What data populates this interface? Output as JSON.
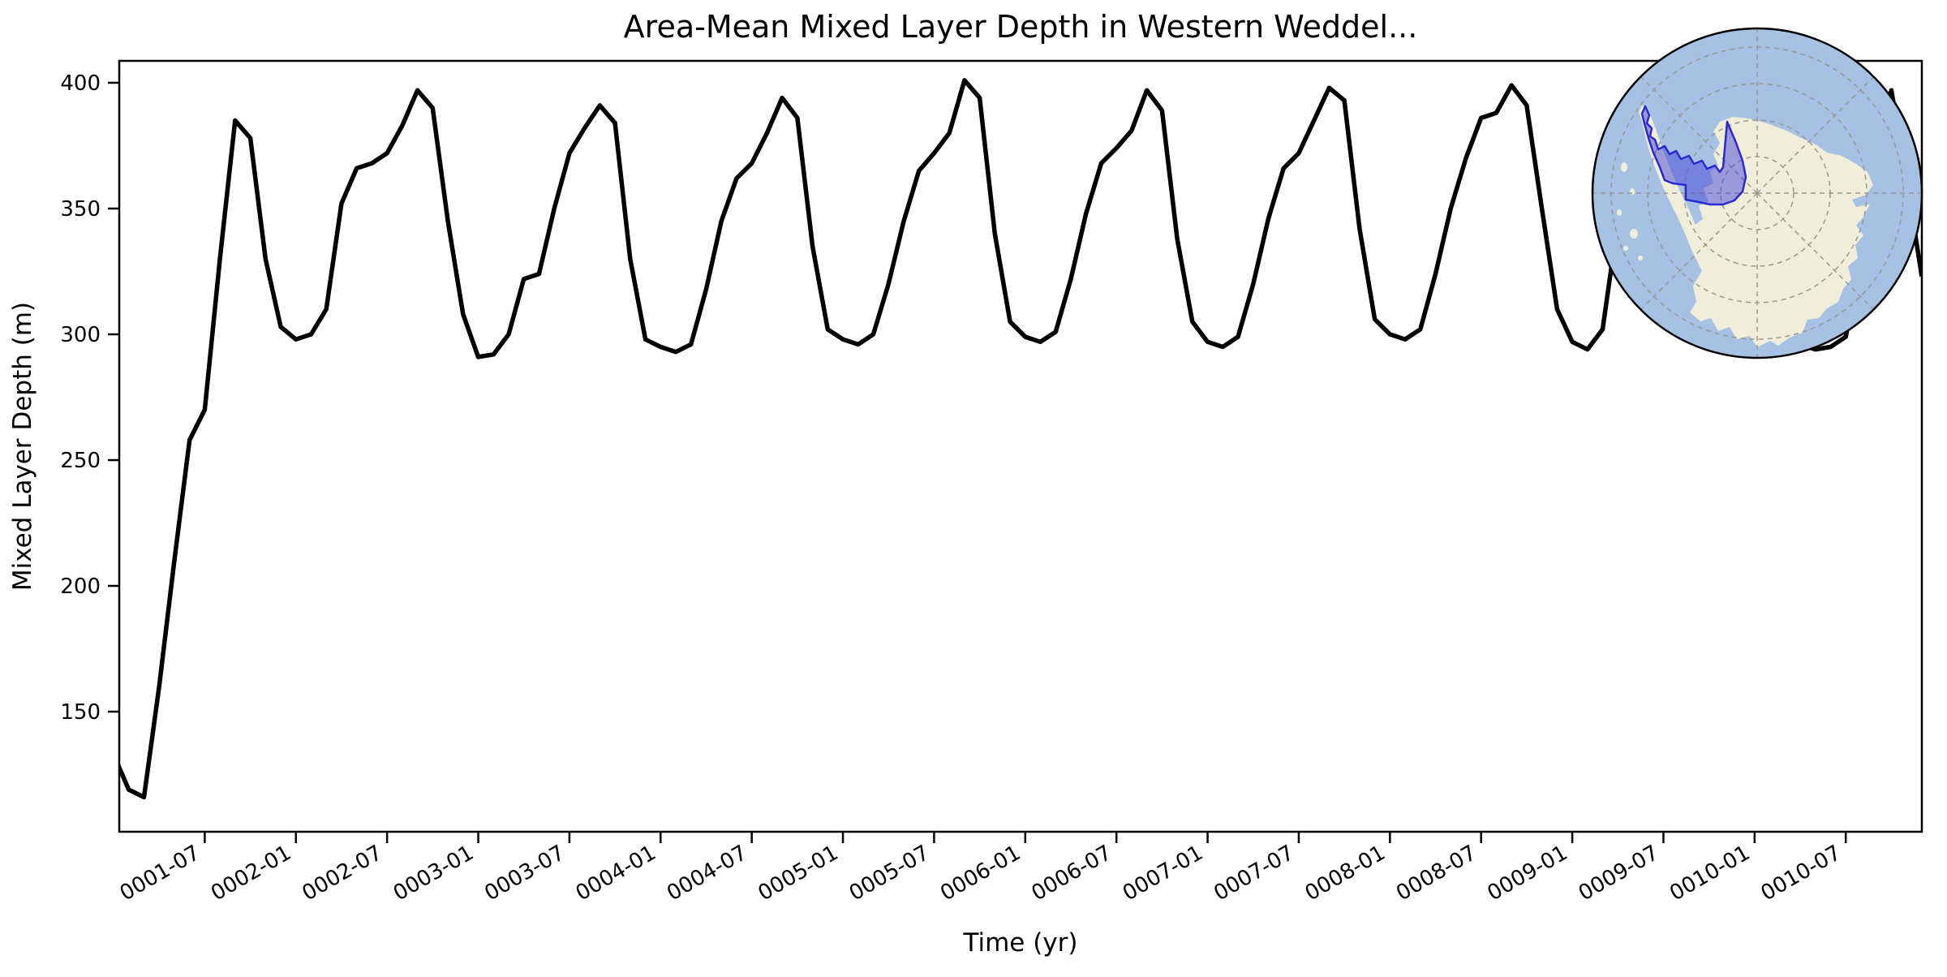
{
  "title": "Area-Mean Mixed Layer Depth in Western Weddel...",
  "axes": {
    "xlabel": "Time (yr)",
    "ylabel": "Mixed Layer Depth (m)"
  },
  "chart_data": {
    "type": "line",
    "series_name": "Area-mean mixed layer depth",
    "time_start": "0001-01",
    "time_end": "0010-12",
    "freq": "monthly",
    "units": "m",
    "values": [
      133,
      119,
      116,
      160,
      210,
      258,
      270,
      330,
      385,
      378,
      330,
      303,
      298,
      300,
      310,
      352,
      366,
      368,
      372,
      383,
      397,
      390,
      345,
      308,
      291,
      292,
      300,
      322,
      324,
      350,
      372,
      382,
      391,
      384,
      330,
      298,
      295,
      293,
      296,
      318,
      345,
      362,
      368,
      380,
      394,
      386,
      335,
      302,
      298,
      296,
      300,
      320,
      345,
      365,
      372,
      380,
      401,
      394,
      340,
      305,
      299,
      297,
      301,
      322,
      348,
      368,
      374,
      381,
      397,
      389,
      338,
      305,
      297,
      295,
      299,
      320,
      346,
      366,
      372,
      385,
      398,
      393,
      342,
      306,
      300,
      298,
      302,
      324,
      350,
      370,
      386,
      388,
      399,
      391,
      350,
      310,
      297,
      294,
      302,
      345,
      377,
      385,
      390,
      395,
      398,
      388,
      340,
      305,
      300,
      296,
      294,
      296,
      294,
      295,
      299,
      330,
      375,
      397,
      362,
      323
    ],
    "xtick_labels": [
      "0001-07",
      "0002-01",
      "0002-07",
      "0003-01",
      "0003-07",
      "0004-01",
      "0004-07",
      "0005-01",
      "0005-07",
      "0006-01",
      "0006-07",
      "0007-01",
      "0007-07",
      "0008-01",
      "0008-07",
      "0009-01",
      "0009-07",
      "0010-01",
      "0010-07"
    ],
    "ytick_values": [
      150,
      200,
      250,
      300,
      350,
      400
    ],
    "ylim": [
      102,
      410
    ],
    "grid": false,
    "legend": "none",
    "line_color": "#000000",
    "line_width": 5.5
  },
  "inset_map": {
    "projection": "south-polar-stereographic",
    "region": "western-weddell-sea-highlight",
    "ocean_color": "#a6c1e3",
    "land_color": "#f0edd9",
    "grid_color": "#999990",
    "outline_color": "#000000",
    "highlight_fill": "#4646d7",
    "highlight_fill_opacity": "0.5",
    "highlight_border": "#2a2ad4"
  }
}
